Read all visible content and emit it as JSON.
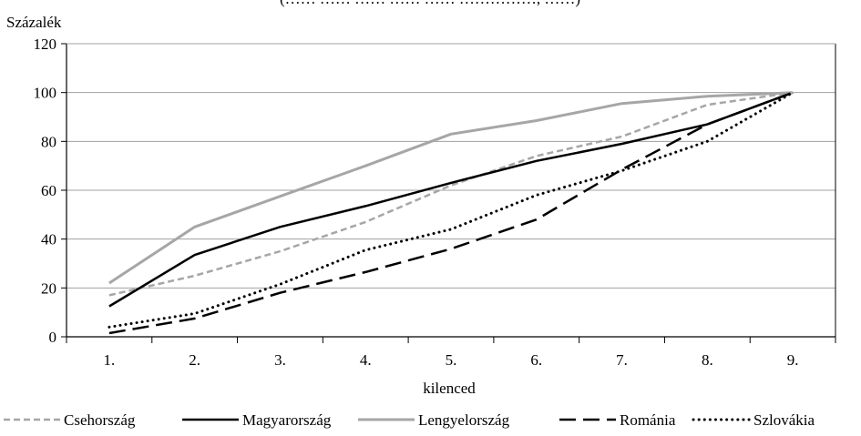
{
  "header": {
    "clipped_title": "(…… …… …… …… …… ……………, ……)"
  },
  "chart_data": {
    "type": "line",
    "title": "",
    "ylabel": "Százalék",
    "xlabel": "kilenced",
    "categories": [
      "1.",
      "2.",
      "3.",
      "4.",
      "5.",
      "6.",
      "7.",
      "8.",
      "9."
    ],
    "ylim": [
      0,
      120
    ],
    "yticks": [
      0,
      20,
      40,
      60,
      80,
      100,
      120
    ],
    "grid": true,
    "legend_position": "bottom",
    "series": [
      {
        "name": "Csehország",
        "values": [
          17,
          25,
          35,
          47,
          62,
          74,
          82,
          95,
          100
        ],
        "color": "#a6a6a6",
        "dash": "short-dash",
        "width": 2.5
      },
      {
        "name": "Magyarország",
        "values": [
          12.5,
          33.5,
          45,
          53.5,
          63,
          72,
          79,
          87,
          100
        ],
        "color": "#000000",
        "dash": "solid",
        "width": 2.5
      },
      {
        "name": "Lengyelország",
        "values": [
          22,
          45,
          57.5,
          70,
          83,
          88.5,
          95.5,
          98.5,
          100
        ],
        "color": "#a6a6a6",
        "dash": "solid",
        "width": 3
      },
      {
        "name": "Románia",
        "values": [
          1.5,
          7.5,
          18,
          26.5,
          36,
          48,
          68.5,
          87,
          100
        ],
        "color": "#000000",
        "dash": "long-dash",
        "width": 2.5
      },
      {
        "name": "Szlovákia",
        "values": [
          4,
          9.5,
          21.5,
          35.5,
          44,
          58,
          68,
          80,
          100
        ],
        "color": "#000000",
        "dash": "dot",
        "width": 3
      }
    ]
  }
}
